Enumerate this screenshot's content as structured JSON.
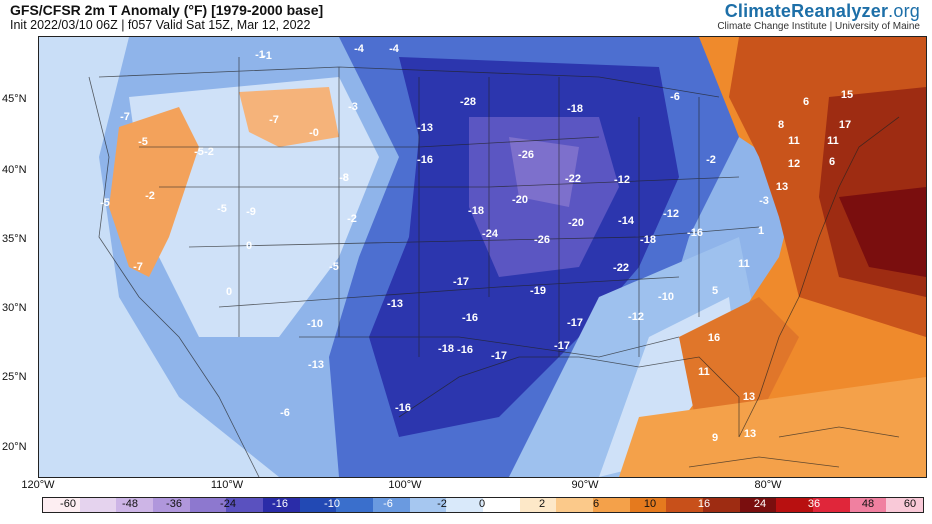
{
  "header": {
    "title": "GFS/CFSR 2m T Anomaly (°F) [1979-2000 base]",
    "subtitle": "Init 2022/03/10 06Z | f057 Valid Sat 15Z, Mar 12, 2022"
  },
  "brand": {
    "name_main": "ClimateReanalyzer",
    "name_suffix": ".org",
    "tagline": "Climate Change Institute | University of Maine"
  },
  "axes": {
    "lat_labels": [
      "45°N",
      "40°N",
      "35°N",
      "30°N",
      "25°N",
      "20°N"
    ],
    "lon_labels": [
      "120°W",
      "110°W",
      "100°W",
      "90°W",
      "80°W"
    ]
  },
  "colorbar": {
    "colors": [
      "#fdeef2",
      "#e5d3ee",
      "#cdb5e6",
      "#b097dc",
      "#8d78cf",
      "#5a51bf",
      "#2a2ca8",
      "#2249b4",
      "#3a6fcc",
      "#6a9ae0",
      "#a6c7f0",
      "#d9e9fa",
      "#ffffff",
      "#fde8c8",
      "#fbc98a",
      "#f4a14a",
      "#e57a1e",
      "#c8501a",
      "#9e2c12",
      "#7a0e0e",
      "#b81010",
      "#e0263a",
      "#f080a0",
      "#f9c9d8"
    ],
    "labels": [
      "-60",
      "-48",
      "-36",
      "-24",
      "-16",
      "-10",
      "-6",
      "-2",
      "0",
      "2",
      "6",
      "10",
      "16",
      "24",
      "36",
      "48",
      "60"
    ]
  },
  "map": {
    "anomaly_values": [
      "-4",
      "-1",
      "-7",
      "-3",
      "-7",
      "-5",
      "-0",
      "-2",
      "-5",
      "-8",
      "-28",
      "-18",
      "-6",
      "-13",
      "-16",
      "-26",
      "-22",
      "-12",
      "-2",
      "-18",
      "-20",
      "-20",
      "-14",
      "-12",
      "-24",
      "-26",
      "-18",
      "-16",
      "-3",
      "-2",
      "-17",
      "-19",
      "-22",
      "-10",
      "-13",
      "-16",
      "-17",
      "-12",
      "-16",
      "-18",
      "-17",
      "-17",
      "-10",
      "-13",
      "-16",
      "-6",
      "-5",
      "-8",
      "-1",
      "-4",
      "-9",
      "-5",
      "-7",
      "0",
      "-2",
      "-5",
      "6",
      "15",
      "8",
      "17",
      "11",
      "11",
      "12",
      "6",
      "13",
      "11",
      "5",
      "16",
      "11",
      "13",
      "13",
      "9",
      "1",
      "0"
    ]
  }
}
